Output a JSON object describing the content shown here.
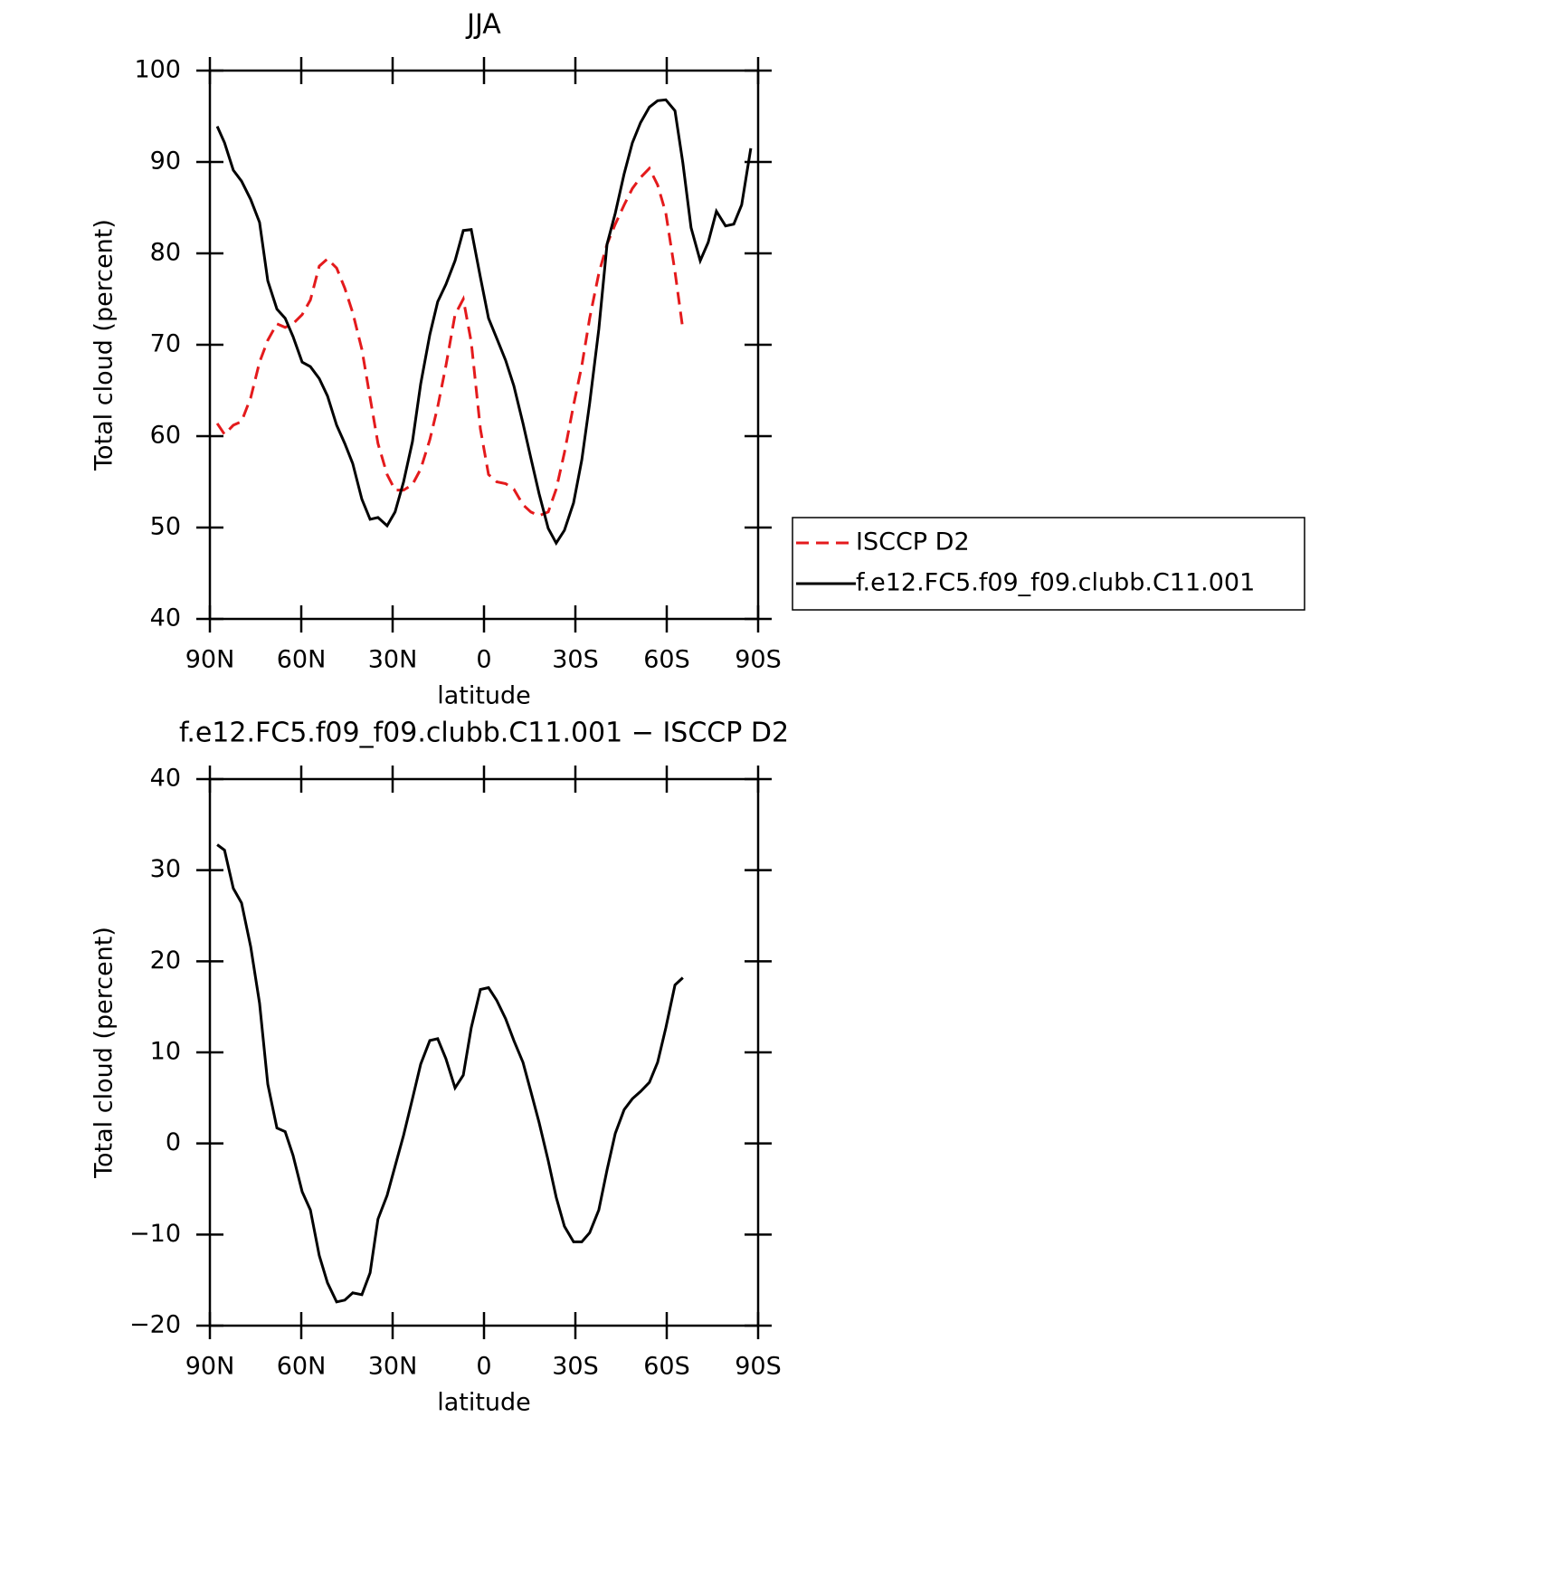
{
  "chart_data": [
    {
      "type": "line",
      "title": "JJA",
      "y_label": "Total cloud (percent)",
      "x_label": "latitude",
      "xlim": [
        90,
        -90
      ],
      "ylim": [
        40,
        100
      ],
      "xticks": [
        {
          "value": 90,
          "label": "90N"
        },
        {
          "value": 60,
          "label": "60N"
        },
        {
          "value": 30,
          "label": "30N"
        },
        0,
        {
          "value": -30,
          "label": "30S"
        },
        {
          "value": -60,
          "label": "60S"
        },
        {
          "value": -90,
          "label": "90S"
        }
      ],
      "yticks": [
        40,
        50,
        60,
        70,
        80,
        90,
        100
      ],
      "legend": "right",
      "x": [
        87.6,
        85.2,
        82.3,
        79.6,
        76.6,
        73.7,
        71.0,
        68.0,
        65.3,
        62.7,
        59.7,
        57.0,
        54.1,
        51.4,
        48.4,
        45.7,
        43.1,
        40.1,
        37.4,
        34.8,
        31.8,
        29.2,
        26.4,
        23.5,
        20.8,
        17.8,
        15.2,
        12.5,
        9.5,
        6.8,
        4.2,
        1.2,
        -1.5,
        -4.2,
        -7.1,
        -9.8,
        -12.8,
        -15.4,
        -18.1,
        -21.1,
        -23.7,
        -26.4,
        -29.4,
        -32.1,
        -34.7,
        -37.7,
        -40.4,
        -43.1,
        -46.0,
        -48.7,
        -51.4,
        -54.3,
        -57.0,
        -59.7,
        -62.7,
        -65.3,
        -68.0,
        -71.0,
        -73.6,
        -76.3,
        -79.3,
        -82.0,
        -84.6,
        -87.6
      ],
      "series": [
        {
          "name": "ISCCP D2",
          "color": "#e41a1c",
          "dash": true,
          "values": [
            61.4,
            60.2,
            61.2,
            61.6,
            64.2,
            68.1,
            70.5,
            72.3,
            71.9,
            72.3,
            73.3,
            74.9,
            78.6,
            79.4,
            78.4,
            76.2,
            73.5,
            69.5,
            64.2,
            59.2,
            55.8,
            54.1,
            54.1,
            54.7,
            56.4,
            59.6,
            63.2,
            67.7,
            73.3,
            75.0,
            70.3,
            60.8,
            55.8,
            55.0,
            54.8,
            54.2,
            52.5,
            51.7,
            51.3,
            51.7,
            54.2,
            58.2,
            63.4,
            67.7,
            72.9,
            77.8,
            81.0,
            83.2,
            85.3,
            87.1,
            88.3,
            89.3,
            87.5,
            84.4,
            78.0,
            71.7,
            null,
            null,
            null,
            null,
            null,
            null,
            null,
            null
          ]
        },
        {
          "name": "f.e12.FC5.f09_f09.clubb.C11.001",
          "color": "#000000",
          "dash": false,
          "values": [
            93.9,
            92.1,
            89.1,
            87.9,
            85.9,
            83.4,
            77.0,
            73.9,
            72.9,
            70.9,
            68.1,
            67.6,
            66.3,
            64.4,
            61.2,
            59.2,
            57.0,
            53.1,
            50.9,
            51.1,
            50.2,
            51.7,
            55.0,
            59.4,
            65.7,
            71.1,
            74.7,
            76.6,
            79.2,
            82.5,
            82.6,
            77.4,
            72.9,
            70.7,
            68.3,
            65.5,
            61.4,
            57.6,
            53.7,
            49.9,
            48.3,
            49.7,
            52.7,
            57.4,
            63.6,
            71.7,
            81.0,
            84.4,
            88.7,
            92.1,
            94.3,
            96.0,
            96.7,
            96.8,
            95.6,
            89.9,
            82.8,
            79.2,
            81.2,
            84.6,
            83.0,
            83.2,
            85.3,
            91.5
          ]
        }
      ]
    },
    {
      "type": "line",
      "title": "f.e12.FC5.f09_f09.clubb.C11.001 − ISCCP D2",
      "y_label": "Total cloud (percent)",
      "x_label": "latitude",
      "xlim": [
        90,
        -90
      ],
      "ylim": [
        -20,
        40
      ],
      "xticks": [
        {
          "value": 90,
          "label": "90N"
        },
        {
          "value": 60,
          "label": "60N"
        },
        {
          "value": 30,
          "label": "30N"
        },
        0,
        {
          "value": -30,
          "label": "30S"
        },
        {
          "value": -60,
          "label": "60S"
        },
        {
          "value": -90,
          "label": "90S"
        }
      ],
      "yticks": [
        {
          "value": -20,
          "label": "−20"
        },
        {
          "value": -10,
          "label": "−10"
        },
        0,
        10,
        20,
        30,
        40
      ],
      "x": [
        87.6,
        85.2,
        82.3,
        79.6,
        76.6,
        73.7,
        71.0,
        68.0,
        65.3,
        62.7,
        59.7,
        57.0,
        54.1,
        51.4,
        48.4,
        45.7,
        43.1,
        40.1,
        37.4,
        34.8,
        31.8,
        29.2,
        26.4,
        23.5,
        20.8,
        17.8,
        15.2,
        12.5,
        9.5,
        6.8,
        4.2,
        1.2,
        -1.5,
        -4.2,
        -7.1,
        -9.8,
        -12.8,
        -15.4,
        -18.1,
        -21.1,
        -23.7,
        -26.4,
        -29.4,
        -32.1,
        -34.7,
        -37.7,
        -40.4,
        -43.1,
        -46.0,
        -48.7,
        -51.4,
        -54.3,
        -57.0,
        -59.7,
        -62.7,
        -65.3
      ],
      "series": [
        {
          "color": "#000000",
          "dash": false,
          "values": [
            32.8,
            32.2,
            28.0,
            26.4,
            21.6,
            15.4,
            6.5,
            1.7,
            1.3,
            -1.3,
            -5.3,
            -7.3,
            -12.3,
            -15.3,
            -17.4,
            -17.2,
            -16.4,
            -16.6,
            -14.2,
            -8.3,
            -5.7,
            -2.5,
            0.9,
            4.9,
            8.7,
            11.3,
            11.5,
            9.3,
            6.1,
            7.5,
            12.7,
            16.9,
            17.1,
            15.7,
            13.7,
            11.3,
            8.9,
            5.7,
            2.3,
            -1.9,
            -5.9,
            -9.1,
            -10.8,
            -10.8,
            -9.8,
            -7.3,
            -2.9,
            1.1,
            3.7,
            4.9,
            5.7,
            6.7,
            8.9,
            12.7,
            17.4,
            18.2
          ]
        }
      ]
    }
  ]
}
